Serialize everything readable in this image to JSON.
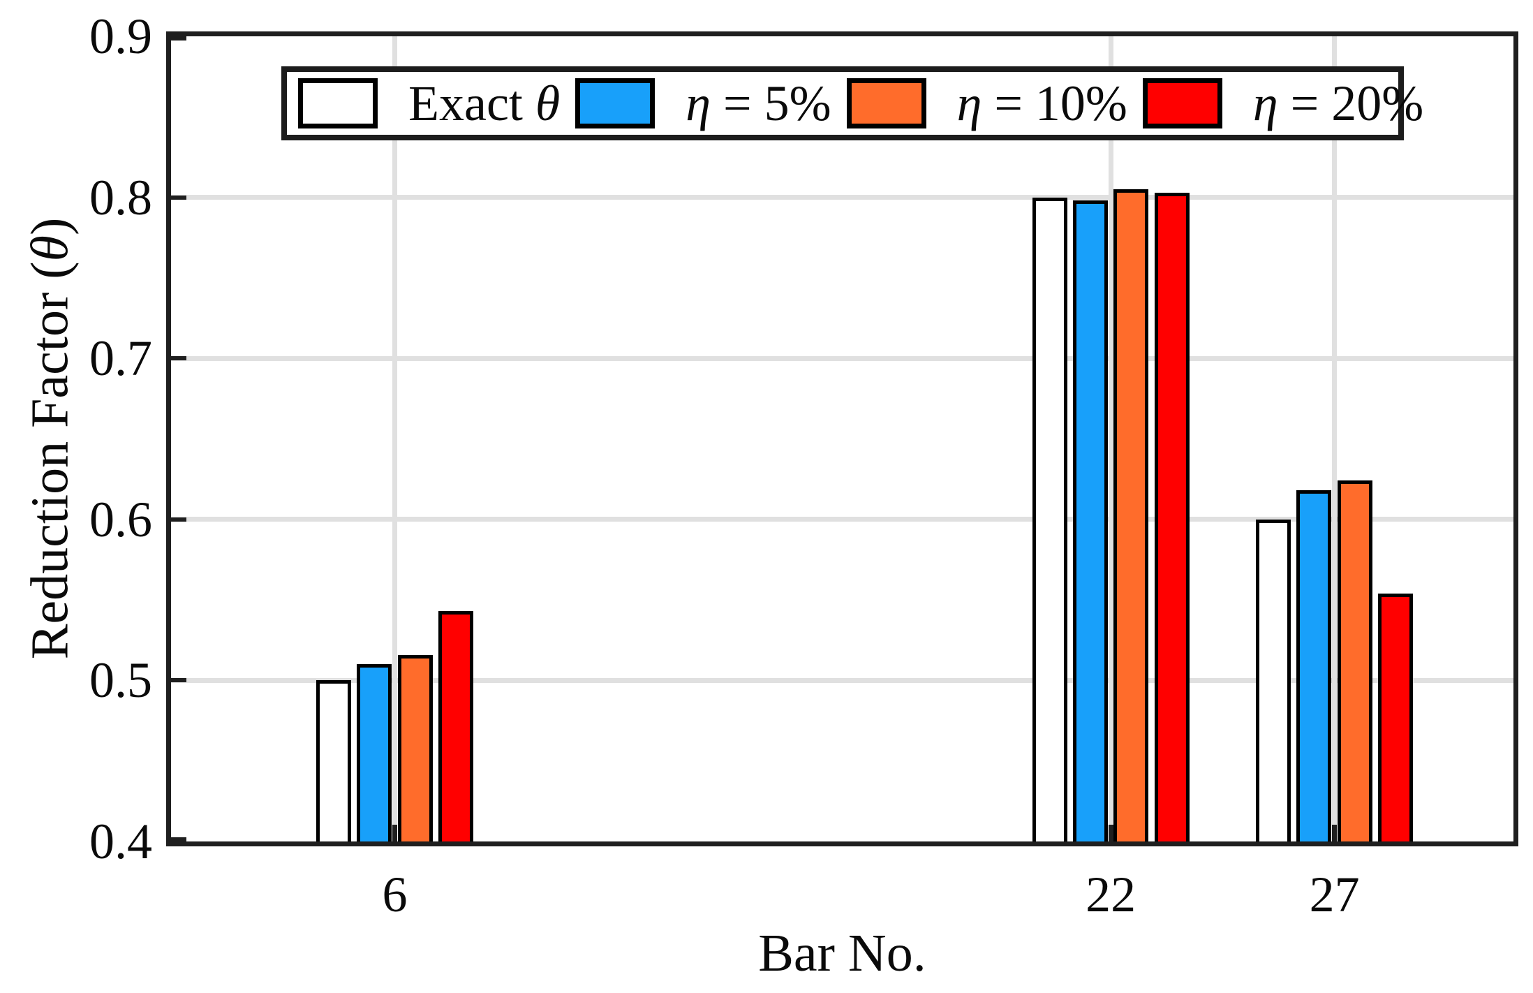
{
  "figure": {
    "background": "#ffffff",
    "axis_color": "#1f1f1f",
    "grid_color": "#e0e0e0",
    "bar_outline_color": "#000000",
    "text_color": "#0a0a0a"
  },
  "chart_data": {
    "type": "bar",
    "title": "",
    "xlabel": "Bar No.",
    "ylabel": {
      "pre": "Reduction Factor (",
      "sym": "θ",
      "post": ")"
    },
    "categories": [
      6,
      22,
      27
    ],
    "xticks": [
      6,
      22,
      27
    ],
    "xtick_labels": [
      "6",
      "22",
      "27"
    ],
    "yticks": [
      0.4,
      0.5,
      0.6,
      0.7,
      0.8,
      0.9
    ],
    "ytick_labels": [
      "0.4",
      "0.5",
      "0.6",
      "0.7",
      "0.8",
      "0.9"
    ],
    "xlim": [
      1,
      31
    ],
    "ylim": [
      0.4,
      0.9
    ],
    "grid": true,
    "legend_position": "top-inside-horizontal",
    "series": [
      {
        "name_pre": "Exact ",
        "name_sym": "θ",
        "name_post": "",
        "color": "#ffffff",
        "values": [
          0.5,
          0.8,
          0.6
        ]
      },
      {
        "name_pre": "",
        "name_sym": "η",
        "name_post": " = 5%",
        "color": "#18a0fa",
        "values": [
          0.51,
          0.798,
          0.618
        ]
      },
      {
        "name_pre": "",
        "name_sym": "η",
        "name_post": " = 10%",
        "color": "#ff6c2b",
        "values": [
          0.516,
          0.805,
          0.624
        ]
      },
      {
        "name_pre": "",
        "name_sym": "η",
        "name_post": " = 20%",
        "color": "#ff0000",
        "values": [
          0.543,
          0.803,
          0.554
        ]
      }
    ]
  }
}
